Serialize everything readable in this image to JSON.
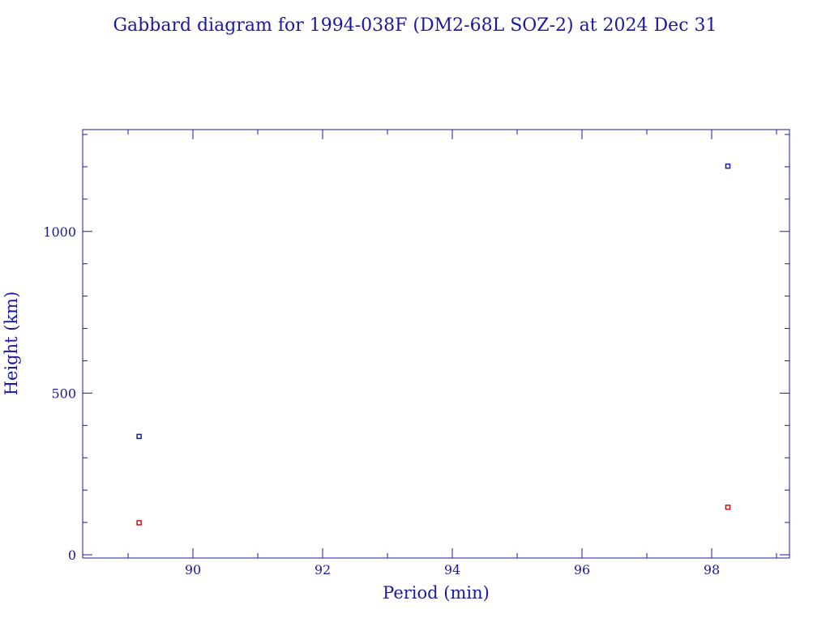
{
  "chart_data": {
    "type": "scatter",
    "title": "Gabbard diagram for 1994-038F (DM2-68L SOZ-2) at 2024 Dec 31",
    "xlabel": "Period (min)",
    "ylabel": "Height (km)",
    "xlim": [
      88.3,
      99.2
    ],
    "ylim": [
      -10,
      1315
    ],
    "xticks": [
      90,
      92,
      94,
      96,
      98
    ],
    "xtick_labels": [
      "90",
      "92",
      "94",
      "96",
      "98"
    ],
    "x_minor_step": 1,
    "yticks": [
      0,
      500,
      1000
    ],
    "ytick_labels": [
      "0",
      "500",
      "1000"
    ],
    "y_minor_step": 100,
    "grid": false,
    "series": [
      {
        "color": "#1a1a9c",
        "points": [
          {
            "x": 89.17,
            "y": 366
          },
          {
            "x": 98.25,
            "y": 1202
          }
        ]
      },
      {
        "color": "#cc1111",
        "points": [
          {
            "x": 89.17,
            "y": 99
          },
          {
            "x": 98.25,
            "y": 147
          }
        ]
      }
    ]
  }
}
